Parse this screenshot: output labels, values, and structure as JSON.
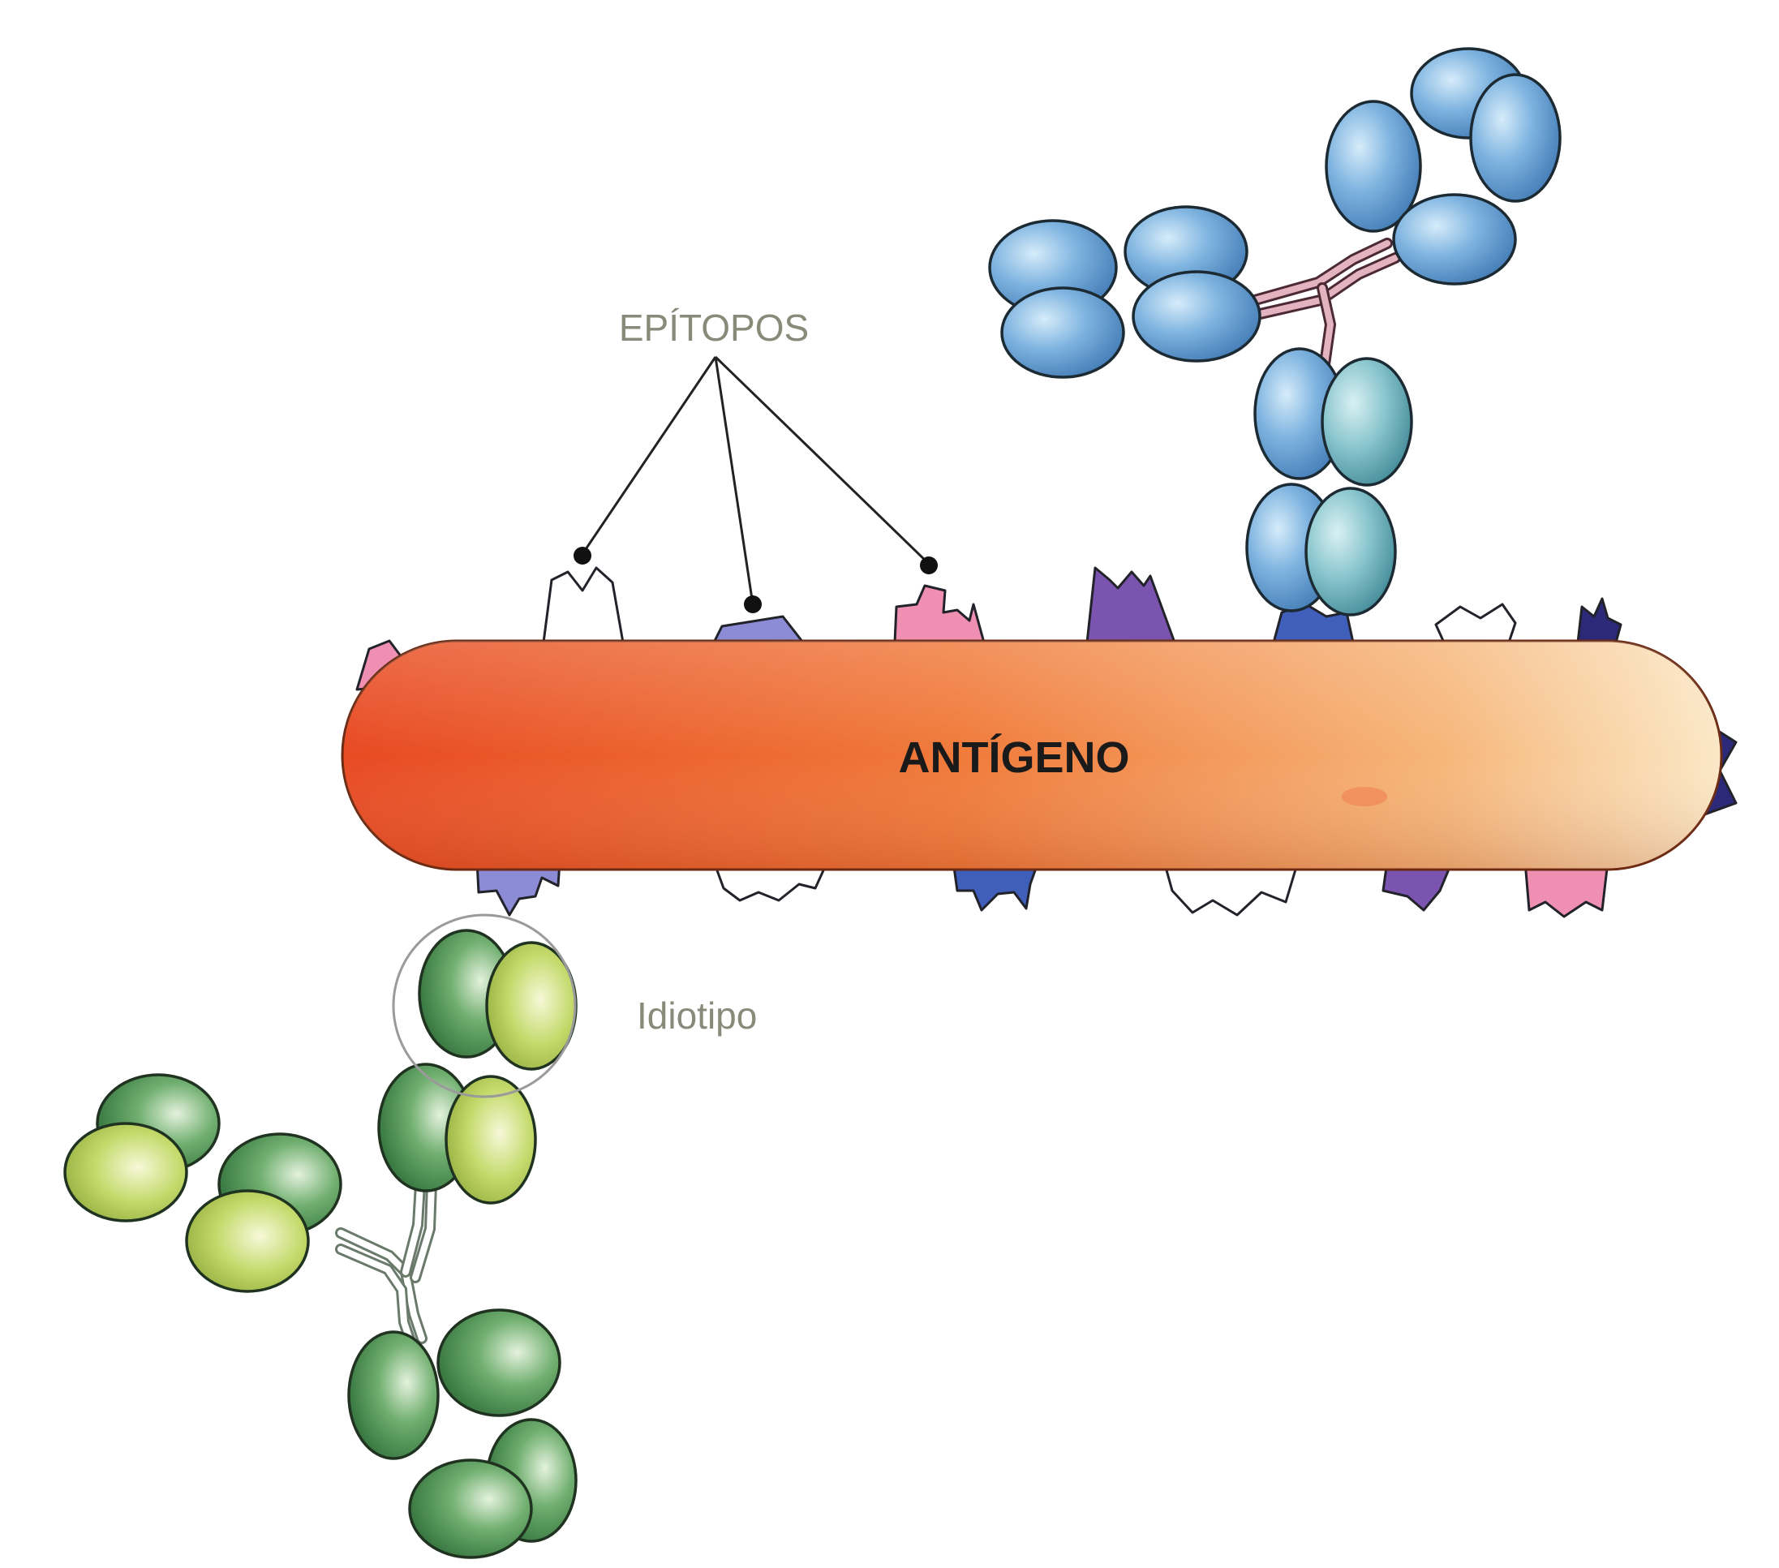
{
  "labels": {
    "epitopes": "EPÍTOPOS",
    "antigen": "ANTÍGENO",
    "idiotype": "Idiotipo"
  },
  "colors": {
    "antigen_dark": "#e94e24",
    "antigen_light": "#fbe6c2",
    "antibody_blue": "#5f9bd0",
    "antibody_green_dark": "#2f7a3a",
    "antibody_green_light": "#b9cf52",
    "hinge_pink": "#c98a9c",
    "epitope_white": "#ffffff",
    "epitope_lavender": "#8c8cd6",
    "epitope_pink": "#ef8fb2",
    "epitope_purple": "#7b54b0",
    "epitope_blue": "#3f5fba",
    "epitope_navy": "#2c2a78"
  }
}
